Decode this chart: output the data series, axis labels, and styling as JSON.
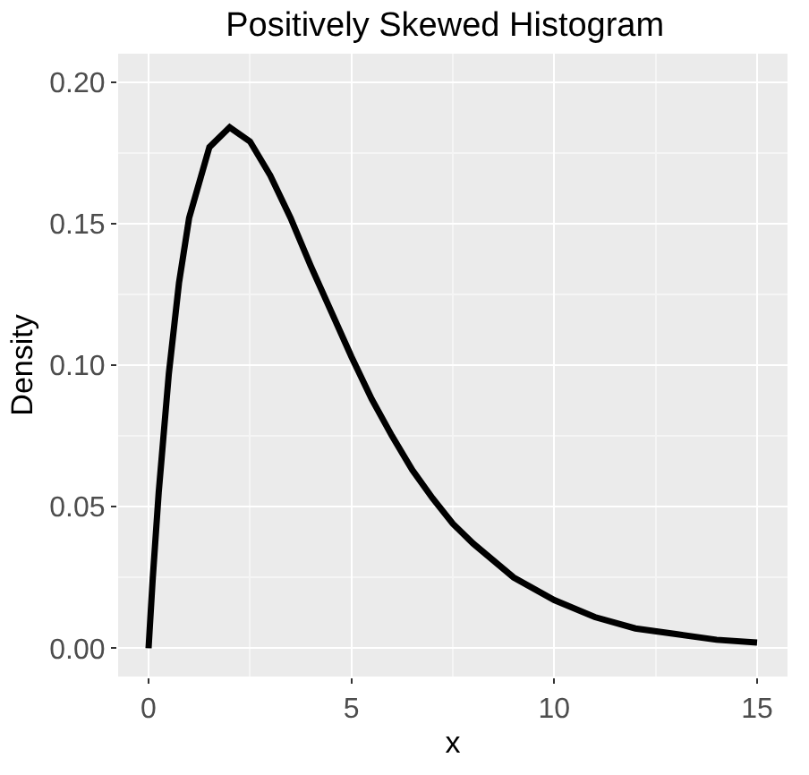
{
  "chart_data": {
    "type": "line",
    "title": "Positively Skewed Histogram",
    "xlabel": "x",
    "ylabel": "Density",
    "x": [
      0,
      0.1,
      0.25,
      0.5,
      0.75,
      1,
      1.5,
      2,
      2.5,
      3,
      3.5,
      4,
      4.5,
      5,
      5.5,
      6,
      6.5,
      7,
      7.5,
      8,
      9,
      10,
      11,
      12,
      13,
      14,
      15
    ],
    "series": [
      {
        "color": "#000000",
        "values": [
          0,
          0.024,
          0.055,
          0.097,
          0.129,
          0.152,
          0.177,
          0.184,
          0.179,
          0.167,
          0.152,
          0.135,
          0.119,
          0.103,
          0.088,
          0.075,
          0.063,
          0.053,
          0.044,
          0.037,
          0.025,
          0.017,
          0.011,
          0.007,
          0.005,
          0.003,
          0.002
        ]
      }
    ],
    "xlim": [
      -0.75,
      15.75
    ],
    "ylim": [
      -0.01,
      0.21
    ],
    "xticks": [
      0,
      5,
      10,
      15
    ],
    "yticks": [
      {
        "value": 0,
        "label": "0.00"
      },
      {
        "value": 0.05,
        "label": "0.05"
      },
      {
        "value": 0.1,
        "label": "0.10"
      },
      {
        "value": 0.15,
        "label": "0.15"
      },
      {
        "value": 0.2,
        "label": "0.20"
      }
    ],
    "grid": true,
    "marker": "none",
    "line_style": "solid"
  }
}
